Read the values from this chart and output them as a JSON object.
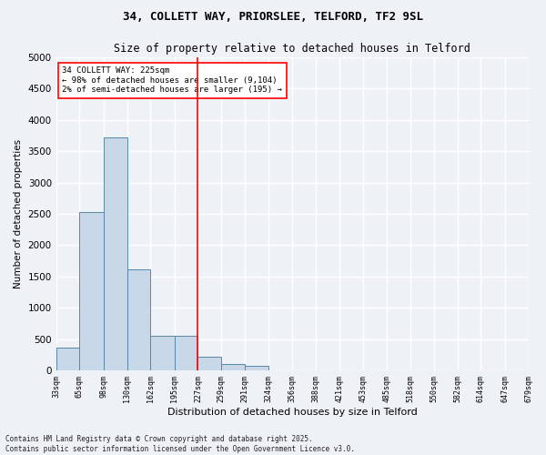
{
  "title_line1": "34, COLLETT WAY, PRIORSLEE, TELFORD, TF2 9SL",
  "title_line2": "Size of property relative to detached houses in Telford",
  "xlabel": "Distribution of detached houses by size in Telford",
  "ylabel": "Number of detached properties",
  "footer_line1": "Contains HM Land Registry data © Crown copyright and database right 2025.",
  "footer_line2": "Contains public sector information licensed under the Open Government Licence v3.0.",
  "bin_edges": [
    33,
    65,
    98,
    130,
    162,
    195,
    227,
    259,
    291,
    324,
    356,
    388,
    421,
    453,
    485,
    518,
    550,
    582,
    614,
    647,
    679
  ],
  "bin_labels": [
    "33sqm",
    "65sqm",
    "98sqm",
    "130sqm",
    "162sqm",
    "195sqm",
    "227sqm",
    "259sqm",
    "291sqm",
    "324sqm",
    "356sqm",
    "388sqm",
    "421sqm",
    "453sqm",
    "485sqm",
    "518sqm",
    "550sqm",
    "582sqm",
    "614sqm",
    "647sqm",
    "679sqm"
  ],
  "bar_heights": [
    370,
    2530,
    3720,
    1620,
    560,
    560,
    220,
    110,
    80,
    0,
    0,
    0,
    0,
    0,
    0,
    0,
    0,
    0,
    0,
    0
  ],
  "bar_color": "#c8d8e8",
  "bar_edge_color": "#5588aa",
  "ylim": [
    0,
    5000
  ],
  "yticks": [
    0,
    500,
    1000,
    1500,
    2000,
    2500,
    3000,
    3500,
    4000,
    4500,
    5000
  ],
  "vline_x": 227,
  "vline_color": "red",
  "annotation_box_text": "34 COLLETT WAY: 225sqm\n← 98% of detached houses are smaller (9,104)\n2% of semi-detached houses are larger (195) →",
  "background_color": "#eef2f7",
  "plot_bg_color": "#eef2f7",
  "grid_color": "white",
  "title1_fontsize": 9,
  "title2_fontsize": 8.5,
  "ylabel_fontsize": 7.5,
  "xlabel_fontsize": 8,
  "ytick_fontsize": 7.5,
  "xtick_fontsize": 6,
  "footer_fontsize": 5.5,
  "annot_fontsize": 6.5
}
